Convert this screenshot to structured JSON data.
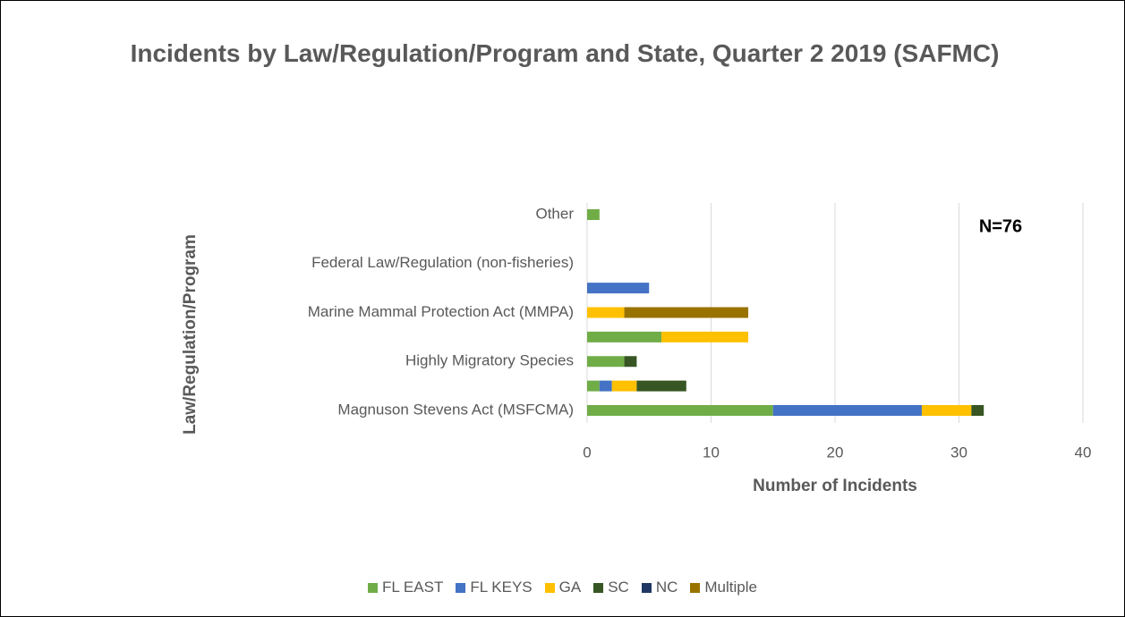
{
  "chart_data": {
    "type": "bar",
    "orientation": "horizontal",
    "stacked": true,
    "title": "Incidents by Law/Regulation/Program and State, Quarter 2 2019 (SAFMC)",
    "x_label": "Number of Incidents",
    "y_label": "Law/Regulation/Program",
    "annotation": "N=76",
    "categories": [
      "Magnuson Stevens Act (MSFCMA)",
      null,
      "Highly Migratory Species",
      null,
      "Marine Mammal Protection Act (MMPA)",
      null,
      "Federal Law/Regulation (non-fisheries)",
      null,
      "Other"
    ],
    "series": [
      {
        "name": "FL EAST",
        "color": "#70ad47",
        "values": [
          15,
          1,
          3,
          6,
          0,
          0,
          0,
          0,
          1
        ]
      },
      {
        "name": "FL KEYS",
        "color": "#4472c4",
        "values": [
          12,
          1,
          0,
          0,
          0,
          5,
          0,
          0,
          0
        ]
      },
      {
        "name": "GA",
        "color": "#ffc000",
        "values": [
          4,
          2,
          0,
          7,
          3,
          0,
          0,
          0,
          0
        ]
      },
      {
        "name": "SC",
        "color": "#375623",
        "values": [
          1,
          4,
          1,
          0,
          0,
          0,
          0,
          0,
          0
        ]
      },
      {
        "name": "NC",
        "color": "#203864",
        "values": [
          0,
          0,
          0,
          0,
          0,
          0,
          0,
          0,
          0
        ]
      },
      {
        "name": "Multiple",
        "color": "#997300",
        "values": [
          0,
          0,
          0,
          0,
          10,
          0,
          0,
          0,
          0
        ]
      }
    ],
    "xlim": [
      0,
      40
    ],
    "xticks": [
      0,
      10,
      20,
      30,
      40
    ],
    "grid": true
  }
}
